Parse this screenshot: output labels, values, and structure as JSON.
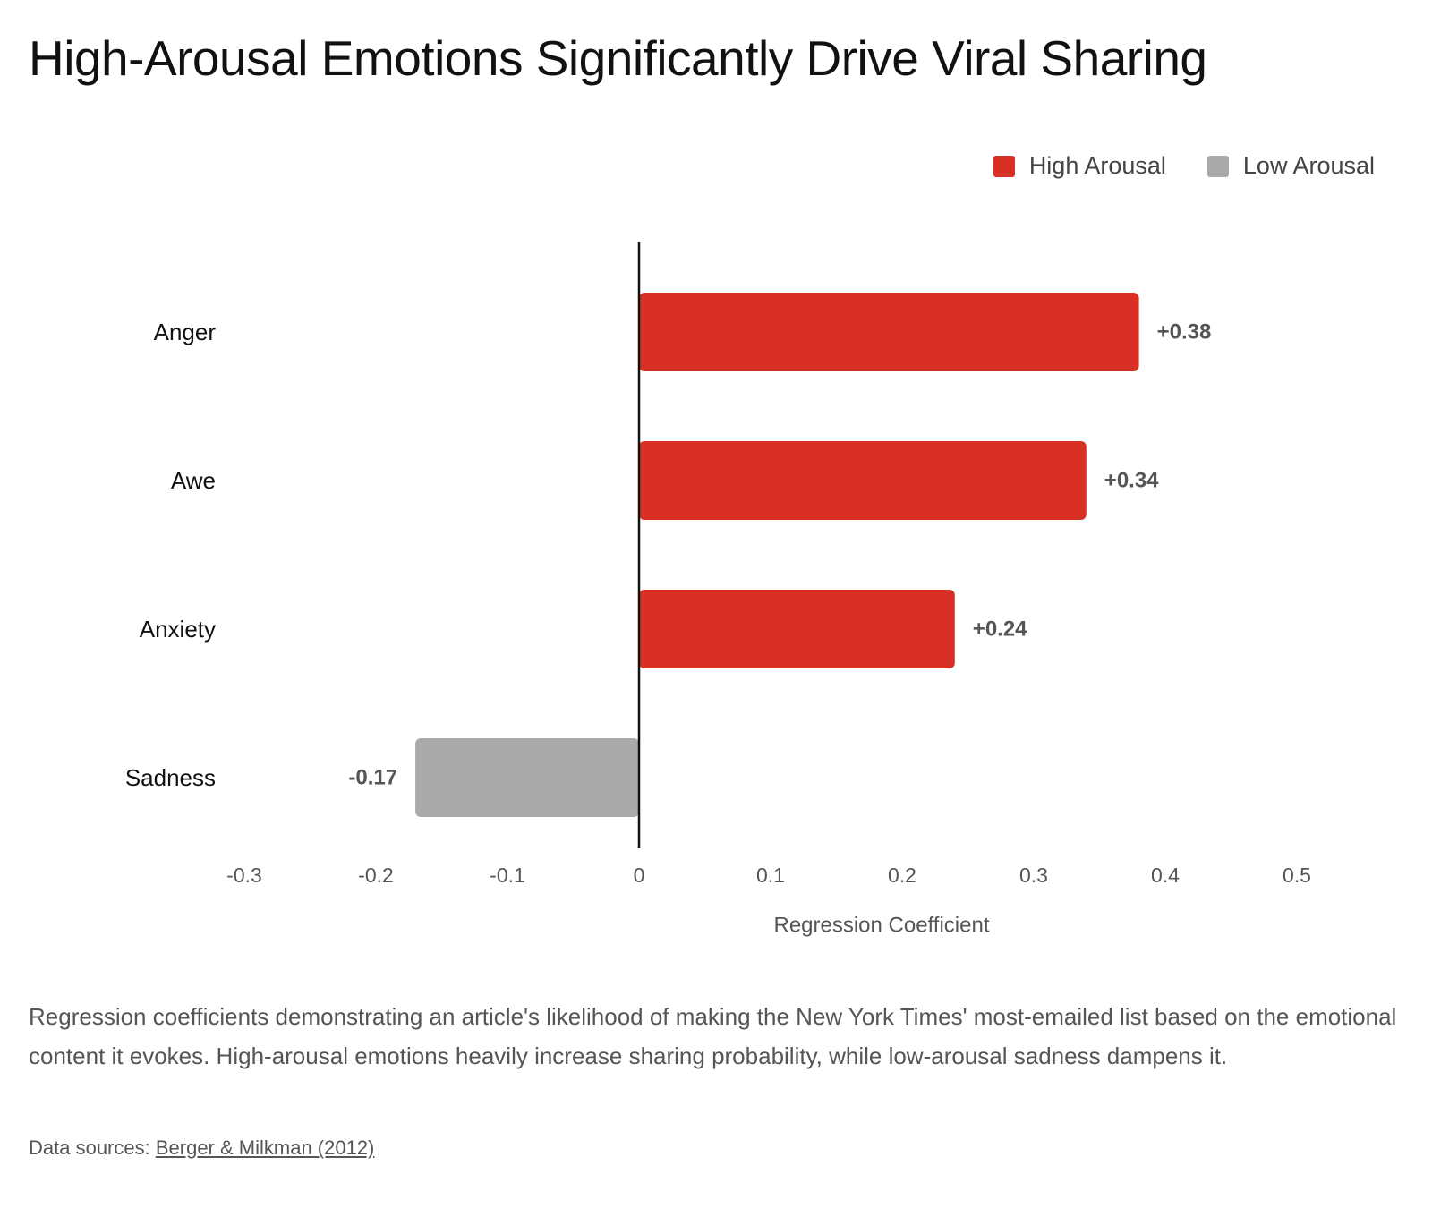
{
  "header": {
    "title": "High-Arousal Emotions Significantly Drive Viral Sharing"
  },
  "legend": {
    "items": [
      {
        "label": "High Arousal",
        "color": "#d93025"
      },
      {
        "label": "Low Arousal",
        "color": "#aaaaaa"
      }
    ]
  },
  "chart_data": {
    "type": "bar",
    "orientation": "horizontal",
    "title": "High-Arousal Emotions Significantly Drive Viral Sharing",
    "xlabel": "Regression Coefficient",
    "ylabel": "",
    "xlim": [
      -0.3,
      0.5
    ],
    "x_ticks": [
      -0.3,
      -0.2,
      -0.1,
      0,
      0.1,
      0.2,
      0.3,
      0.4,
      0.5
    ],
    "x_tick_labels": [
      "-0.3",
      "-0.2",
      "-0.1",
      "0",
      "0.1",
      "0.2",
      "0.3",
      "0.4",
      "0.5"
    ],
    "grid": false,
    "legend_position": "top-right",
    "categories": [
      "Anger",
      "Awe",
      "Anxiety",
      "Sadness"
    ],
    "values": [
      0.38,
      0.34,
      0.24,
      -0.17
    ],
    "value_labels": [
      "+0.38",
      "+0.34",
      "+0.24",
      "-0.17"
    ],
    "groups": [
      "High Arousal",
      "High Arousal",
      "High Arousal",
      "Low Arousal"
    ]
  },
  "footer": {
    "caption": "Regression coefficients demonstrating an article's likelihood of making the New York Times' most-emailed list based on the emotional content it evokes. High-arousal emotions heavily increase sharing probability, while low-arousal sadness dampens it.",
    "source_prefix": "Data sources: ",
    "source_link": "Berger & Milkman (2012)"
  }
}
